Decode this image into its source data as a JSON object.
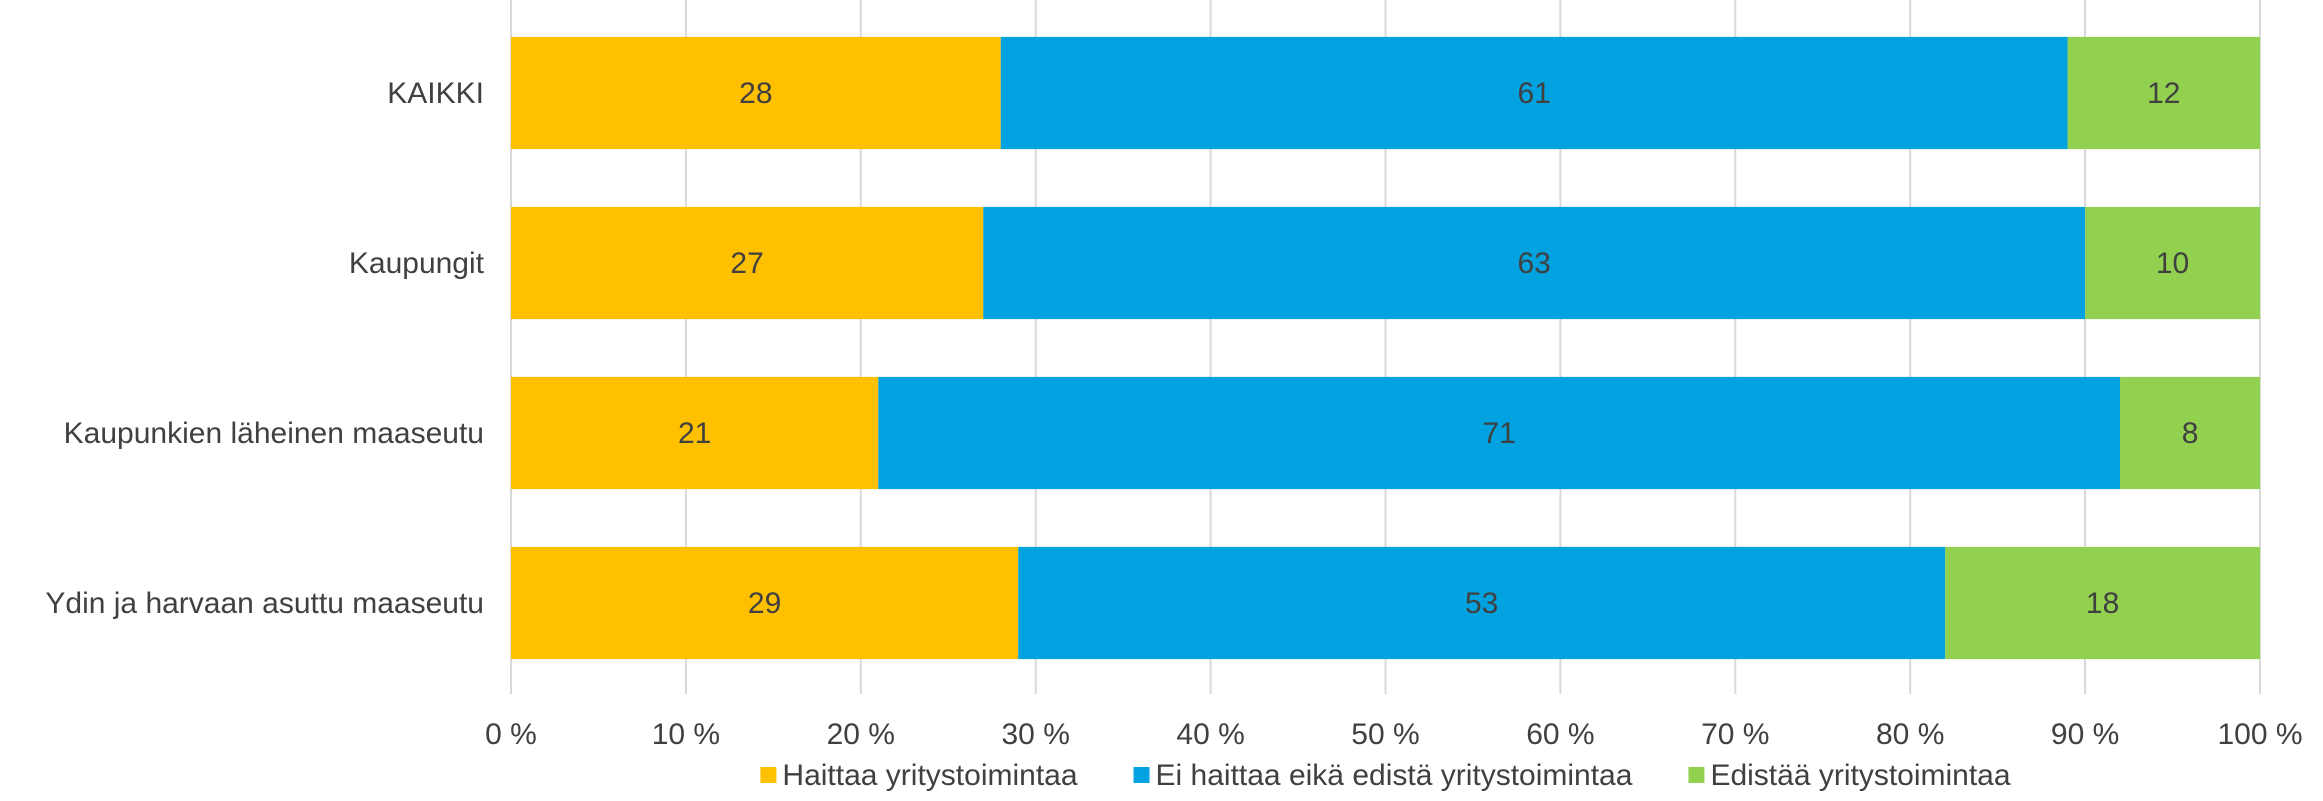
{
  "chart_data": {
    "type": "bar",
    "orientation": "horizontal",
    "stacked": true,
    "categories": [
      "KAIKKI",
      "Kaupungit",
      "Kaupunkien läheinen maaseutu",
      "Ydin ja harvaan asuttu maaseutu"
    ],
    "series": [
      {
        "name": "Haittaa yritystoimintaa",
        "color": "#FFC000",
        "values": [
          28,
          27,
          21,
          29
        ],
        "labels": [
          "28",
          "27",
          "21",
          "29"
        ]
      },
      {
        "name": "Ei haittaa eikä edistä yritystoimintaa",
        "color": "#00A2E0",
        "values": [
          61,
          63,
          71,
          53
        ],
        "labels": [
          "61",
          "63",
          "71",
          "53"
        ]
      },
      {
        "name": "Edistää yritystoimintaa",
        "color": "#92D050",
        "values": [
          12,
          10,
          8,
          18
        ],
        "labels": [
          "12",
          "10",
          "8",
          "18"
        ]
      }
    ],
    "xlim": [
      0,
      100
    ],
    "xticks": [
      0,
      10,
      20,
      30,
      40,
      50,
      60,
      70,
      80,
      90,
      100
    ],
    "xtick_labels": [
      "0 %",
      "10 %",
      "20 %",
      "30 %",
      "40 %",
      "50 %",
      "60 %",
      "70 %",
      "80 %",
      "90 %",
      "100 %"
    ],
    "grid": true,
    "legend": "bottom",
    "title": "",
    "xlabel": "",
    "ylabel": ""
  }
}
